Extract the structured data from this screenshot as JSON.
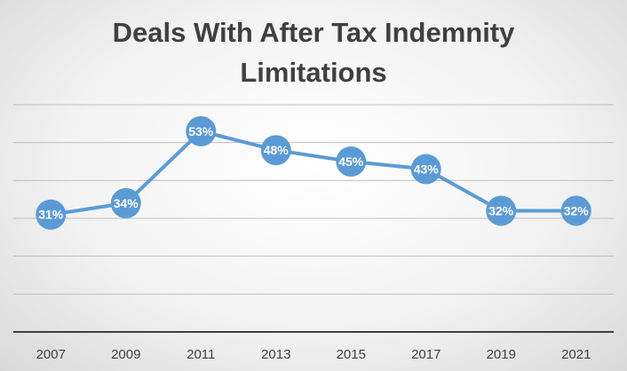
{
  "chart_data": {
    "type": "line",
    "title_lines": [
      "Deals With After Tax Indemnity",
      "Limitations"
    ],
    "categories": [
      "2007",
      "2009",
      "2011",
      "2013",
      "2015",
      "2017",
      "2019",
      "2021"
    ],
    "values": [
      31,
      34,
      53,
      48,
      45,
      43,
      32,
      32
    ],
    "data_labels": [
      "31%",
      "34%",
      "53%",
      "48%",
      "45%",
      "43%",
      "32%",
      "32%"
    ],
    "ylim": [
      0,
      60
    ],
    "gridlines": true,
    "legend": "none",
    "colors": {
      "line": "#5b9bd5",
      "marker": "#5b9bd5",
      "grid": "#bfbfbf",
      "axis": "#404040"
    }
  }
}
